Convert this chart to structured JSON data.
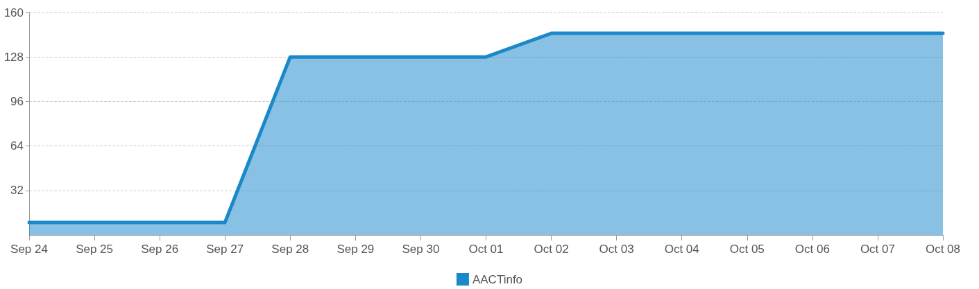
{
  "chart_data": {
    "type": "area",
    "categories": [
      "Sep 24",
      "Sep 25",
      "Sep 26",
      "Sep 27",
      "Sep 28",
      "Sep 29",
      "Sep 30",
      "Oct 01",
      "Oct 02",
      "Oct 03",
      "Oct 04",
      "Oct 05",
      "Oct 06",
      "Oct 07",
      "Oct 08"
    ],
    "series": [
      {
        "name": "AACTinfo",
        "color": "#1a88c9",
        "values": [
          9,
          9,
          9,
          9,
          128,
          128,
          128,
          128,
          145,
          145,
          145,
          145,
          145,
          145,
          145
        ]
      }
    ],
    "ylim": [
      0,
      160
    ],
    "yticks": [
      32,
      64,
      96,
      128,
      160
    ],
    "grid": "y",
    "legend": "bottom",
    "marker": "none"
  }
}
